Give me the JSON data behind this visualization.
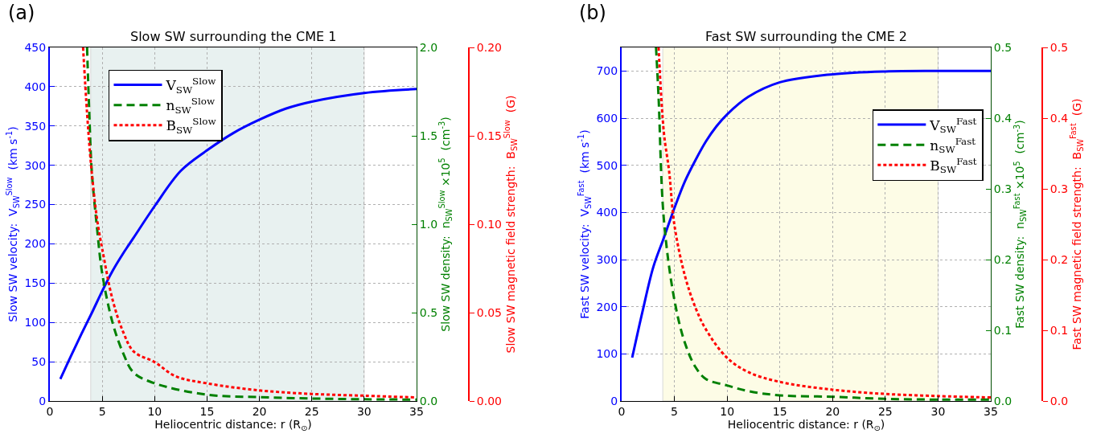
{
  "chart_data": [
    {
      "type": "line",
      "title": "Slow SW surrounding the CME 1",
      "xlabel": "Heliocentric distance: r (R$_{⊙}$)",
      "ylabel": "Slow SW velocity:  V$_{SW}$$^{Slow}$  (km s$^{-1}$)",
      "y2label": "Slow SW density:  n$_{SW}$$^{Slow}$ ×10$^{5}$  (cm$^{-3}$)",
      "y3label": "Slow SW magnetic field strength:  B$_{SW}$$^{Slow}$  (G)",
      "annotations": [
        "(a)"
      ],
      "xlim": [
        0,
        35
      ],
      "xticks": [
        0,
        5,
        10,
        15,
        20,
        25,
        30,
        35
      ],
      "ylim": [
        0,
        450
      ],
      "yticks": [
        0,
        50,
        100,
        150,
        200,
        250,
        300,
        350,
        400,
        450
      ],
      "y2lim": [
        0,
        2
      ],
      "y2ticks": [
        {
          "value": 0,
          "label": "0.0"
        },
        0.5,
        {
          "value": 1,
          "label": "1.0"
        },
        1.5,
        {
          "value": 2,
          "label": "2.0"
        }
      ],
      "y3lim": [
        0,
        0.2
      ],
      "y3ticks": [
        {
          "value": 0,
          "label": "0.00"
        },
        0.05,
        {
          "value": 0.1,
          "label": "0.10"
        },
        0.15,
        {
          "value": 0.2,
          "label": "0.20"
        }
      ],
      "grid": true,
      "legend": "top left",
      "bands": [
        {
          "axis": "x",
          "from": 3.9,
          "to": 30,
          "color": "#e8f1f0"
        }
      ],
      "series": [
        {
          "name": "V$_{SW}$$^{Slow}$",
          "color": "#0000ff",
          "line_style": "solid",
          "axis": "y",
          "x": [
            1,
            2,
            3,
            4,
            5,
            6,
            7,
            7.5,
            8,
            10,
            12.5,
            15,
            17.5,
            20,
            22.5,
            25,
            30,
            35
          ],
          "values": [
            28,
            57,
            85,
            112,
            140,
            166,
            188,
            198,
            208,
            248,
            293,
            319,
            341,
            358,
            372,
            381,
            392,
            397
          ]
        },
        {
          "name": "n$_{SW}$$^{Slow}$",
          "color": "#008000",
          "line_style": "dashed",
          "axis": "y2",
          "x": [
            3.55,
            3.75,
            4,
            4.5,
            5,
            6,
            7,
            8,
            10,
            15,
            20,
            25,
            30,
            35
          ],
          "values": [
            2,
            1.65,
            1.3,
            0.98,
            0.72,
            0.44,
            0.27,
            0.16,
            0.1,
            0.036,
            0.022,
            0.014,
            0.01,
            0.008
          ]
        },
        {
          "name": "B$_{SW}$$^{Slow}$",
          "color": "#ff0000",
          "line_style": "dotted",
          "axis": "y3",
          "x": [
            3.17,
            3.55,
            3.94,
            4.5,
            5,
            6,
            7,
            8,
            10,
            12,
            15,
            20,
            25,
            30,
            35
          ],
          "values": [
            0.2,
            0.163,
            0.133,
            0.103,
            0.086,
            0.057,
            0.039,
            0.028,
            0.022,
            0.014,
            0.01,
            0.006,
            0.004,
            0.003,
            0.002
          ]
        }
      ]
    },
    {
      "type": "line",
      "title": "Fast SW surrounding the CME 2",
      "xlabel": "Heliocentric distance: r (R$_{⊙}$)",
      "ylabel": "Fast SW velocity:  V$_{SW}$$^{Fast}$  (km s$^{-1}$)",
      "y2label": "Fast SW density:  n$_{SW}$$^{Fast}$ ×10$^{5}$  (cm$^{-3}$)",
      "y3label": "Fast SW magnetic field strength:  B$_{SW}$$^{Fast}$  (G)",
      "annotations": [
        "(b)"
      ],
      "xlim": [
        0,
        35
      ],
      "xticks": [
        0,
        5,
        10,
        15,
        20,
        25,
        30,
        35
      ],
      "ylim": [
        0,
        750
      ],
      "yticks": [
        0,
        100,
        200,
        300,
        400,
        500,
        600,
        700
      ],
      "y2lim": [
        0,
        0.5
      ],
      "y2ticks": [
        {
          "value": 0,
          "label": "0.0"
        },
        0.1,
        0.2,
        0.3,
        0.4,
        0.5
      ],
      "y3lim": [
        0,
        0.5
      ],
      "y3ticks": [
        {
          "value": 0,
          "label": "0.0"
        },
        0.1,
        0.2,
        0.3,
        0.4,
        0.5
      ],
      "grid": true,
      "legend": "top right",
      "bands": [
        {
          "axis": "x",
          "from": 3.9,
          "to": 30,
          "color": "#fdfce6"
        }
      ],
      "series": [
        {
          "name": "V$_{SW}$$^{Fast}$",
          "color": "#0000ff",
          "line_style": "solid",
          "axis": "y",
          "x": [
            1,
            2,
            3,
            4,
            5,
            6,
            7,
            8,
            9,
            10,
            12,
            15,
            20,
            25,
            30,
            35
          ],
          "values": [
            92,
            192,
            284,
            346,
            409,
            466,
            511,
            551,
            583,
            608,
            645,
            676,
            693,
            699,
            700,
            700
          ]
        },
        {
          "name": "n$_{SW}$$^{Fast}$",
          "color": "#008000",
          "line_style": "dashed",
          "axis": "y2",
          "x": [
            3.26,
            3.5,
            4,
            5,
            6,
            7,
            8,
            10,
            12,
            15,
            20,
            25,
            30,
            35
          ],
          "values": [
            0.5,
            0.43,
            0.257,
            0.143,
            0.082,
            0.048,
            0.031,
            0.022,
            0.014,
            0.008,
            0.006,
            0.003,
            0.002,
            0.002
          ]
        },
        {
          "name": "B$_{SW}$$^{Fast}$",
          "color": "#ff0000",
          "line_style": "dotted",
          "axis": "y3",
          "x": [
            3.5,
            4,
            4.5,
            5,
            6,
            7,
            8,
            10,
            12,
            15,
            20,
            25,
            30,
            35
          ],
          "values": [
            0.5,
            0.38,
            0.325,
            0.249,
            0.177,
            0.132,
            0.101,
            0.061,
            0.041,
            0.027,
            0.016,
            0.01,
            0.007,
            0.005
          ]
        }
      ]
    }
  ]
}
